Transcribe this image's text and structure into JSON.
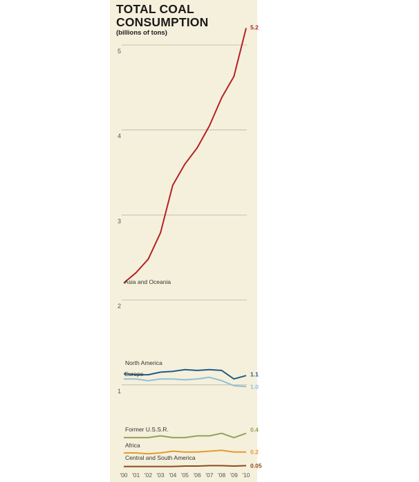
{
  "chart_data": {
    "type": "line",
    "title": "TOTAL COAL CONSUMPTION",
    "subtitle": "(billions of tons)",
    "x": [
      "'00",
      "'01",
      "'02",
      "'03",
      "'04",
      "'05",
      "'06",
      "'07",
      "'08",
      "'09",
      "'10"
    ],
    "ylim": [
      0,
      5.4
    ],
    "yticks": [
      1,
      2,
      3,
      4,
      5
    ],
    "grid": true,
    "series": [
      {
        "name": "Asia and Oceania",
        "end_label": "5.2",
        "color": "#b52025",
        "values": [
          2.2,
          2.32,
          2.48,
          2.79,
          3.35,
          3.6,
          3.79,
          4.05,
          4.38,
          4.63,
          5.2
        ]
      },
      {
        "name": "North America",
        "end_label": "1.1",
        "color": "#1f5b85",
        "values": [
          1.13,
          1.12,
          1.12,
          1.15,
          1.16,
          1.18,
          1.17,
          1.18,
          1.17,
          1.07,
          1.11
        ]
      },
      {
        "name": "Europe",
        "end_label": "1.0",
        "color": "#8fc0d8",
        "values": [
          1.07,
          1.07,
          1.05,
          1.07,
          1.07,
          1.06,
          1.07,
          1.09,
          1.05,
          0.99,
          0.98
        ]
      },
      {
        "name": "Former U.S.S.R.",
        "end_label": "0.4",
        "color": "#8ea359",
        "values": [
          0.38,
          0.38,
          0.38,
          0.4,
          0.38,
          0.38,
          0.4,
          0.4,
          0.43,
          0.38,
          0.43
        ]
      },
      {
        "name": "Africa",
        "end_label": "0.2",
        "color": "#e39a2c",
        "values": [
          0.2,
          0.2,
          0.19,
          0.2,
          0.22,
          0.21,
          0.21,
          0.22,
          0.23,
          0.21,
          0.21
        ]
      },
      {
        "name": "Central and South America",
        "end_label": "0.05",
        "color": "#8a4c1a",
        "values": [
          0.04,
          0.04,
          0.04,
          0.04,
          0.04,
          0.045,
          0.045,
          0.05,
          0.05,
          0.045,
          0.05
        ]
      }
    ]
  }
}
